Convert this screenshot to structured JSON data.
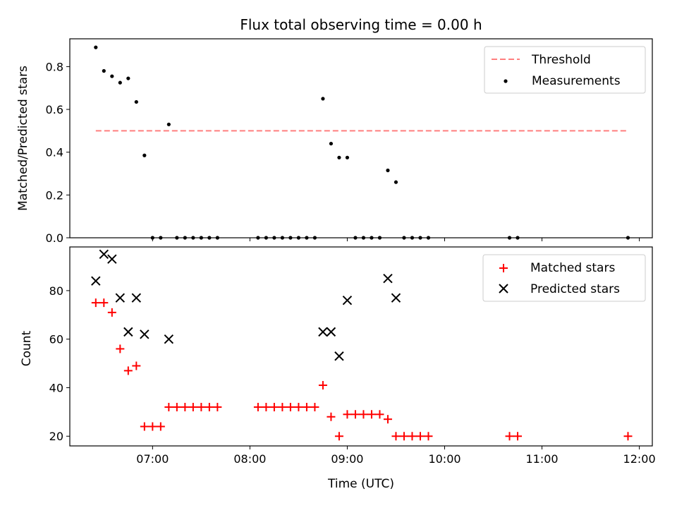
{
  "title": "Flux total observing time = 0.00 h",
  "chart_data": [
    {
      "type": "scatter",
      "ylabel": "Matched/Predicted stars",
      "xlim": [
        "06:09",
        "12:08"
      ],
      "ylim": [
        0,
        0.93
      ],
      "yticks": [
        "0.0",
        "0.2",
        "0.4",
        "0.6",
        "0.8"
      ],
      "ytick_values": [
        0,
        0.2,
        0.4,
        0.6,
        0.8
      ],
      "xticks": [
        "07:00",
        "08:00",
        "09:00",
        "10:00",
        "11:00",
        "12:00"
      ],
      "show_xtick_labels": false,
      "legend_position": "upper right",
      "threshold": {
        "name": "Threshold",
        "value": 0.5,
        "x_range": [
          "06:25",
          "11:53"
        ],
        "color": "#ff7f7f"
      },
      "series": [
        {
          "name": "Measurements",
          "color": "#000000",
          "x": [
            "06:25",
            "06:30",
            "06:35",
            "06:40",
            "06:45",
            "06:50",
            "06:55",
            "07:00",
            "07:05",
            "07:10",
            "07:15",
            "07:20",
            "07:25",
            "07:30",
            "07:35",
            "07:40",
            "08:05",
            "08:10",
            "08:15",
            "08:20",
            "08:25",
            "08:30",
            "08:35",
            "08:40",
            "08:45",
            "08:50",
            "08:55",
            "09:00",
            "09:05",
            "09:10",
            "09:15",
            "09:20",
            "09:25",
            "09:30",
            "09:35",
            "09:40",
            "09:45",
            "09:50",
            "10:40",
            "10:45",
            "11:53"
          ],
          "y": [
            0.89,
            0.78,
            0.755,
            0.725,
            0.745,
            0.635,
            0.385,
            0,
            0,
            0.53,
            0,
            0,
            0,
            0,
            0,
            0,
            0,
            0,
            0,
            0,
            0,
            0,
            0,
            0,
            0.65,
            0.44,
            0.375,
            0.375,
            0,
            0,
            0,
            0,
            0.315,
            0.26,
            0,
            0,
            0,
            0,
            0,
            0,
            0
          ]
        }
      ]
    },
    {
      "type": "scatter",
      "xlabel": "Time (UTC)",
      "ylabel": "Count",
      "xlim": [
        "06:09",
        "12:08"
      ],
      "ylim": [
        16,
        98
      ],
      "yticks": [
        "20",
        "40",
        "60",
        "80"
      ],
      "ytick_values": [
        20,
        40,
        60,
        80
      ],
      "xticks": [
        "07:00",
        "08:00",
        "09:00",
        "10:00",
        "11:00",
        "12:00"
      ],
      "legend_position": "upper right",
      "series": [
        {
          "name": "Matched stars",
          "marker": "+",
          "color": "#ff0000",
          "x": [
            "06:25",
            "06:30",
            "06:35",
            "06:40",
            "06:45",
            "06:50",
            "06:55",
            "07:00",
            "07:05",
            "07:10",
            "07:15",
            "07:20",
            "07:25",
            "07:30",
            "07:35",
            "07:40",
            "08:05",
            "08:10",
            "08:15",
            "08:20",
            "08:25",
            "08:30",
            "08:35",
            "08:40",
            "08:45",
            "08:50",
            "08:55",
            "09:00",
            "09:05",
            "09:10",
            "09:15",
            "09:20",
            "09:25",
            "09:30",
            "09:35",
            "09:40",
            "09:45",
            "09:50",
            "10:40",
            "10:45",
            "11:53"
          ],
          "y": [
            75,
            75,
            71,
            56,
            47,
            49,
            24,
            24,
            24,
            32,
            32,
            32,
            32,
            32,
            32,
            32,
            32,
            32,
            32,
            32,
            32,
            32,
            32,
            32,
            41,
            28,
            20,
            29,
            29,
            29,
            29,
            29,
            27,
            20,
            20,
            20,
            20,
            20,
            20,
            20,
            20
          ]
        },
        {
          "name": "Predicted stars",
          "marker": "x",
          "color": "#000000",
          "x": [
            "06:25",
            "06:30",
            "06:35",
            "06:40",
            "06:45",
            "06:50",
            "06:55",
            "07:10",
            "08:45",
            "08:50",
            "08:55",
            "09:00",
            "09:25",
            "09:30"
          ],
          "y": [
            84,
            95,
            93,
            77,
            63,
            77,
            62,
            60,
            63,
            63,
            53,
            76,
            85,
            77
          ]
        }
      ]
    }
  ]
}
